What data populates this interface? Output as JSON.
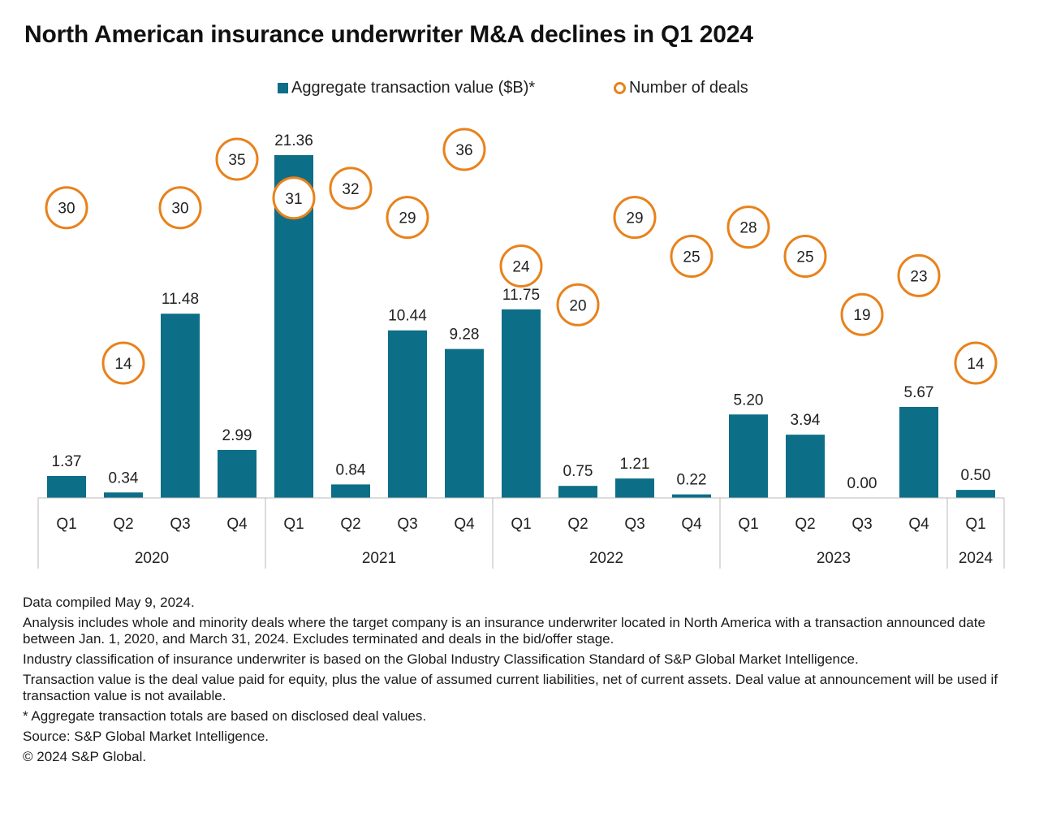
{
  "title": "North American insurance underwriter M&A declines in Q1 2024",
  "colors": {
    "bar": "#0d6e87",
    "deal_circle": "#e8821c",
    "axis": "#b8b8b8"
  },
  "chart_data": {
    "type": "bar",
    "title": "North American insurance underwriter M&A declines in Q1 2024",
    "legend_position": "top-center",
    "grid": false,
    "categories": [
      "Q1",
      "Q2",
      "Q3",
      "Q4",
      "Q1",
      "Q2",
      "Q3",
      "Q4",
      "Q1",
      "Q2",
      "Q3",
      "Q4",
      "Q1",
      "Q2",
      "Q3",
      "Q4",
      "Q1"
    ],
    "groups": [
      {
        "label": "2020",
        "count": 4
      },
      {
        "label": "2021",
        "count": 4
      },
      {
        "label": "2022",
        "count": 4
      },
      {
        "label": "2023",
        "count": 4
      },
      {
        "label": "2024",
        "count": 1
      }
    ],
    "series": [
      {
        "name": "Aggregate transaction value ($B)*",
        "type": "bar",
        "values": [
          1.37,
          0.34,
          11.48,
          2.99,
          21.36,
          0.84,
          10.44,
          9.28,
          11.75,
          0.75,
          1.21,
          0.22,
          5.2,
          3.94,
          0.0,
          5.67,
          0.5
        ],
        "labels": [
          "1.37",
          "0.34",
          "11.48",
          "2.99",
          "21.36",
          "0.84",
          "10.44",
          "9.28",
          "11.75",
          "0.75",
          "1.21",
          "0.22",
          "5.20",
          "3.94",
          "0.00",
          "5.67",
          "0.50"
        ]
      },
      {
        "name": "Number of deals",
        "type": "scatter",
        "values": [
          30,
          14,
          30,
          35,
          31,
          32,
          29,
          36,
          24,
          20,
          29,
          25,
          28,
          25,
          19,
          23,
          14
        ]
      }
    ],
    "ylim_bars": [
      0,
      21.36
    ],
    "ylim_deals": [
      0,
      36
    ]
  },
  "notes": [
    "Data compiled May 9, 2024.",
    "Analysis includes whole and minority deals where the target company is an insurance underwriter located in North America with a transaction announced date between Jan. 1, 2020, and March 31, 2024. Excludes terminated and deals in the bid/offer stage.",
    "Industry classification of insurance underwriter is based on the Global Industry Classification Standard of S&P Global Market Intelligence.",
    "Transaction value is the deal value paid for equity, plus the value of assumed current liabilities, net of current assets. Deal value at announcement will be used if transaction value is not available.",
    "* Aggregate transaction totals are based on disclosed deal values.",
    "Source: S&P Global Market Intelligence.",
    "© 2024 S&P Global."
  ]
}
